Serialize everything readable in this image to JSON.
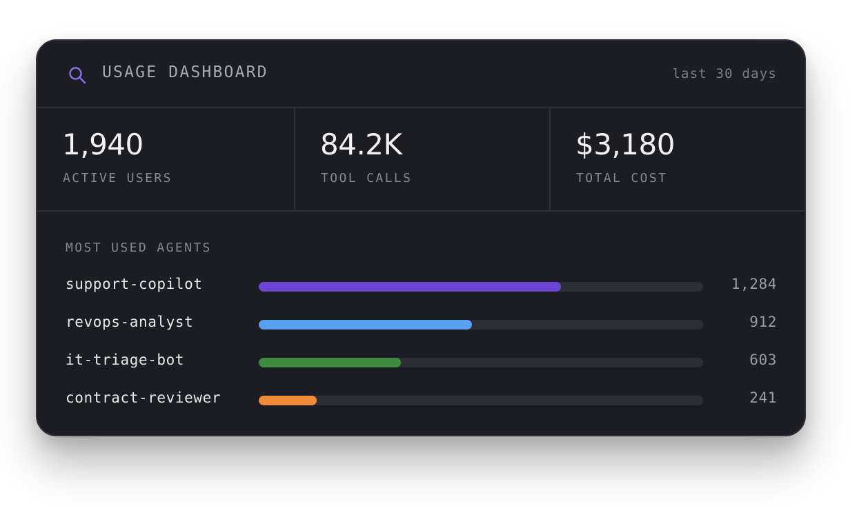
{
  "header": {
    "title": "USAGE DASHBOARD",
    "range": "last 30 days",
    "icon": "search-icon",
    "icon_color": "#8b6ee8"
  },
  "stats": [
    {
      "value": "1,940",
      "label": "ACTIVE USERS"
    },
    {
      "value": "84.2K",
      "label": "TOOL CALLS"
    },
    {
      "value": "$3,180",
      "label": "TOTAL COST"
    }
  ],
  "agents": {
    "title": "MOST USED AGENTS",
    "items": [
      {
        "name": "support-copilot",
        "count": "1,284",
        "share": 0.68,
        "color": "#6a46d6"
      },
      {
        "name": "revops-analyst",
        "count": "912",
        "share": 0.48,
        "color": "#5aa0f2"
      },
      {
        "name": "it-triage-bot",
        "count": "603",
        "share": 0.32,
        "color": "#3d8a41"
      },
      {
        "name": "contract-reviewer",
        "count": "241",
        "share": 0.13,
        "color": "#ef8c3a"
      }
    ]
  }
}
